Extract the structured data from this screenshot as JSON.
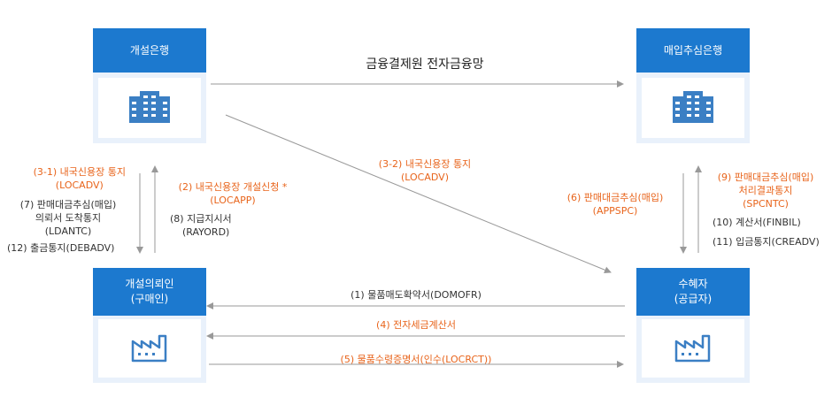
{
  "title": "금융결제원 전자금융망",
  "nodes": {
    "issuing_bank": "개설은행",
    "purchase_bank": "매입추심은행",
    "applicant_line1": "개설의뢰인",
    "applicant_line2": "(구매인)",
    "beneficiary_line1": "수혜자",
    "beneficiary_line2": "(공급자)"
  },
  "left_labels": {
    "l31_a": "(3-1) 내국신용장 통지",
    "l31_b": "(LOCADV)",
    "l7_a": "(7) 판매대금추심(매입)",
    "l7_b": "의뢰서 도착통지",
    "l7_c": "(LDANTC)",
    "l12": "(12) 출금통지(DEBADV)"
  },
  "mid_labels": {
    "l2_a": "(2) 내국신용장 개설신청 *",
    "l2_b": "(LOCAPP)",
    "l8_a": "(8) 지급지시서",
    "l8_b": "(RAYORD)"
  },
  "diag_labels": {
    "l32_a": "(3-2) 내국신용장 통지",
    "l32_b": "(LOCADV)"
  },
  "right_left_labels": {
    "l6_a": "(6) 판매대금추심(매입)",
    "l6_b": "(APPSPC)"
  },
  "right_labels": {
    "l9_a": "(9) 판매대금추심(매입)",
    "l9_b": "처리결과통지",
    "l9_c": "(SPCNTC)",
    "l10": "(10) 계산서(FINBIL)",
    "l11": "(11) 입금통지(CREADV)"
  },
  "bottom_labels": {
    "l1": "(1) 물품매도확약서(DOMOFR)",
    "l4": "(4) 전자세금계산서",
    "l5": "(5) 물품수령증명서(인수(LOCRCT))"
  },
  "colors": {
    "node_header": "#1c79cf",
    "node_body": "#e9f1fb",
    "icon": "#3b7fc4",
    "highlight_text": "#e8641b",
    "arrow": "#999999"
  },
  "icons": [
    "bank-building-icon",
    "bank-building-icon",
    "factory-icon",
    "factory-icon"
  ]
}
